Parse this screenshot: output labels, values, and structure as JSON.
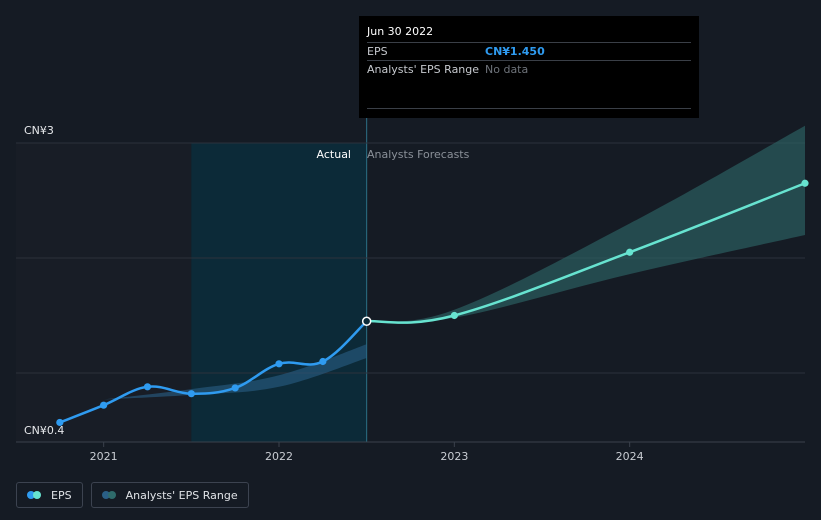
{
  "chart_data": {
    "type": "line",
    "ylabel_top": "CN¥3",
    "ylabel_bottom": "CN¥0.4",
    "ylim": [
      0.4,
      3
    ],
    "x_ticks": [
      "2021",
      "2022",
      "2023",
      "2024"
    ],
    "zones": {
      "actual": "Actual",
      "forecast": "Analysts Forecasts"
    },
    "series": [
      {
        "name": "EPS",
        "color": "#2f9bf0",
        "points": [
          {
            "x": 2020.75,
            "y": 0.57
          },
          {
            "x": 2021.0,
            "y": 0.72
          },
          {
            "x": 2021.25,
            "y": 0.88
          },
          {
            "x": 2021.5,
            "y": 0.82
          },
          {
            "x": 2021.75,
            "y": 0.87
          },
          {
            "x": 2022.0,
            "y": 1.08
          },
          {
            "x": 2022.25,
            "y": 1.1
          },
          {
            "x": 2022.5,
            "y": 1.45
          }
        ]
      },
      {
        "name": "EPS Forecast",
        "color": "#67e3d0",
        "points": [
          {
            "x": 2022.5,
            "y": 1.45
          },
          {
            "x": 2023.0,
            "y": 1.5
          },
          {
            "x": 2024.0,
            "y": 2.05
          },
          {
            "x": 2025.0,
            "y": 2.65
          }
        ]
      }
    ],
    "range_past": {
      "x": [
        2021.0,
        2021.5,
        2022.0,
        2022.5
      ],
      "low": [
        0.77,
        0.81,
        0.88,
        1.13
      ],
      "high": [
        0.77,
        0.86,
        0.98,
        1.25
      ]
    },
    "range_future": {
      "x": [
        2022.5,
        2023.0,
        2024.0,
        2025.0
      ],
      "low": [
        1.45,
        1.48,
        1.86,
        2.2
      ],
      "high": [
        1.45,
        1.55,
        2.3,
        3.15
      ]
    },
    "tooltip": {
      "date": "Jun 30 2022",
      "rows": [
        {
          "label": "EPS",
          "value": "CN¥1.450"
        },
        {
          "label": "Analysts' EPS Range",
          "value": "No data"
        }
      ]
    },
    "legend": [
      {
        "label": "EPS",
        "colors": [
          "#2f9bf0",
          "#67e3d0"
        ]
      },
      {
        "label": "Analysts' EPS Range",
        "colors": [
          "#2a5f86",
          "#2e6b6b"
        ]
      }
    ]
  }
}
